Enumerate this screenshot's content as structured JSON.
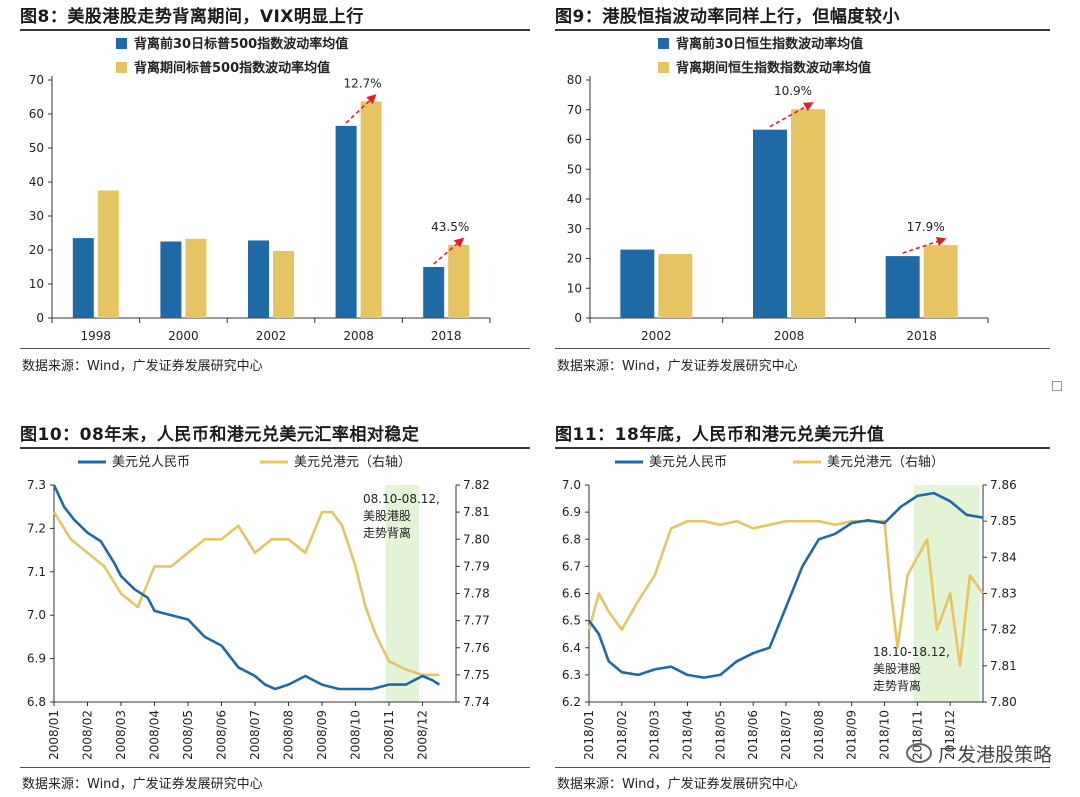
{
  "fig8": {
    "title": "图8：美股港股走势背离期间，VIX明显上行",
    "source": "数据来源：Wind，广发证券发展研究中心",
    "chart_data": {
      "type": "bar",
      "title": "图8：美股港股走势背离期间，VIX明显上行",
      "categories": [
        "1998",
        "2000",
        "2002",
        "2008",
        "2018"
      ],
      "series": [
        {
          "name": "背离前30日标普500指数波动率均值",
          "values": [
            23.5,
            22.5,
            22.8,
            56.5,
            15.0
          ],
          "color": "#1f6aa5"
        },
        {
          "name": "背离期间标普500指数波动率均值",
          "values": [
            37.5,
            23.3,
            19.7,
            63.7,
            21.5
          ],
          "color": "#e6c463"
        }
      ],
      "ylim": [
        0,
        70
      ],
      "yticks": [
        0,
        10,
        20,
        30,
        40,
        50,
        60,
        70
      ],
      "annotations": [
        {
          "category": "2008",
          "text": "12.7%"
        },
        {
          "category": "2018",
          "text": "43.5%"
        }
      ]
    }
  },
  "fig9": {
    "title": "图9：港股恒指波动率同样上行，但幅度较小",
    "source": "数据来源：Wind，广发证券发展研究中心",
    "chart_data": {
      "type": "bar",
      "title": "图9：港股恒指波动率同样上行，但幅度较小",
      "categories": [
        "2002",
        "2008",
        "2018"
      ],
      "series": [
        {
          "name": "背离前30日恒生指数波动率均值",
          "values": [
            23.0,
            63.3,
            20.8
          ],
          "color": "#1f6aa5"
        },
        {
          "name": "背离期间恒生指数指数波动率均值",
          "values": [
            21.5,
            70.2,
            24.5
          ],
          "color": "#e6c463"
        }
      ],
      "ylim": [
        0,
        80
      ],
      "yticks": [
        0,
        10,
        20,
        30,
        40,
        50,
        60,
        70,
        80
      ],
      "annotations": [
        {
          "category": "2008",
          "text": "10.9%"
        },
        {
          "category": "2018",
          "text": "17.9%"
        }
      ]
    }
  },
  "fig10": {
    "title": "图10：08年末，人民币和港元兑美元汇率相对稳定",
    "source": "数据来源：Wind，广发证券发展研究中心",
    "chart_data": {
      "type": "line",
      "title": "图10：08年末，人民币和港元兑美元汇率相对稳定",
      "x_labels": [
        "2008/01",
        "2008/02",
        "2008/03",
        "2008/04",
        "2008/05",
        "2008/06",
        "2008/07",
        "2008/08",
        "2008/09",
        "2008/10",
        "2008/11",
        "2008/12"
      ],
      "y_left": {
        "ticks": [
          "6.8",
          "6.9",
          "7.0",
          "7.1",
          "7.2",
          "7.3"
        ],
        "lim": [
          6.8,
          7.3
        ]
      },
      "y_right": {
        "ticks": [
          "7.74",
          "7.75",
          "7.76",
          "7.77",
          "7.78",
          "7.79",
          "7.80",
          "7.81",
          "7.82"
        ],
        "lim": [
          7.74,
          7.82
        ]
      },
      "shade": {
        "from": 9.9,
        "to": 10.9,
        "label": [
          "08.10-08.12,",
          "美股港股",
          "走势背离"
        ]
      },
      "series": [
        {
          "name": "美元兑人民币",
          "axis": "left",
          "color": "#1f6aa5",
          "x": [
            0,
            0.3,
            0.6,
            1,
            1.4,
            1.8,
            2,
            2.4,
            2.8,
            3,
            3.5,
            4,
            4.5,
            5,
            5.5,
            6,
            6.3,
            6.6,
            7,
            7.5,
            8,
            8.5,
            9,
            9.5,
            10,
            10.5,
            11,
            11.3,
            11.5
          ],
          "values": [
            7.3,
            7.25,
            7.22,
            7.19,
            7.17,
            7.12,
            7.09,
            7.06,
            7.04,
            7.01,
            7.0,
            6.99,
            6.95,
            6.93,
            6.88,
            6.86,
            6.84,
            6.83,
            6.84,
            6.86,
            6.84,
            6.83,
            6.83,
            6.83,
            6.84,
            6.84,
            6.86,
            6.85,
            6.84
          ]
        },
        {
          "name": "美元兑港元（右轴）",
          "axis": "right",
          "color": "#e6c463",
          "x": [
            0,
            0.5,
            1,
            1.5,
            2,
            2.5,
            3,
            3.5,
            4,
            4.5,
            5,
            5.5,
            6,
            6.5,
            7,
            7.5,
            8,
            8.3,
            8.6,
            9,
            9.3,
            9.6,
            10,
            10.5,
            11,
            11.5
          ],
          "values": [
            7.81,
            7.8,
            7.795,
            7.79,
            7.78,
            7.775,
            7.79,
            7.79,
            7.795,
            7.8,
            7.8,
            7.805,
            7.795,
            7.8,
            7.8,
            7.795,
            7.81,
            7.81,
            7.805,
            7.79,
            7.775,
            7.765,
            7.755,
            7.752,
            7.75,
            7.75
          ]
        }
      ]
    }
  },
  "fig11": {
    "title": "图11：18年底，人民币和港元兑美元升值",
    "source": "数据来源：Wind，广发证券发展研究中心",
    "watermark": "广发港股策略",
    "chart_data": {
      "type": "line",
      "title": "图11：18年底，人民币和港元兑美元升值",
      "x_labels": [
        "2018/01",
        "2018/02",
        "2018/03",
        "2018/04",
        "2018/05",
        "2018/06",
        "2018/07",
        "2018/08",
        "2018/09",
        "2018/10",
        "2018/11",
        "2018/12"
      ],
      "y_left": {
        "ticks": [
          "6.2",
          "6.3",
          "6.4",
          "6.5",
          "6.6",
          "6.7",
          "6.8",
          "6.9",
          "7.0"
        ],
        "lim": [
          6.2,
          7.0
        ]
      },
      "y_right": {
        "ticks": [
          "7.80",
          "7.81",
          "7.82",
          "7.83",
          "7.84",
          "7.85",
          "7.86"
        ],
        "lim": [
          7.8,
          7.86
        ]
      },
      "shade": {
        "from": 9.9,
        "to": 11.9,
        "label": [
          "18.10-18.12,",
          "美股港股",
          "走势背离"
        ]
      },
      "series": [
        {
          "name": "美元兑人民币",
          "axis": "left",
          "color": "#1f6aa5",
          "x": [
            0,
            0.3,
            0.6,
            1,
            1.5,
            2,
            2.5,
            3,
            3.5,
            4,
            4.5,
            5,
            5.5,
            6,
            6.5,
            7,
            7.5,
            8,
            8.5,
            9,
            9.5,
            10,
            10.5,
            11,
            11.5,
            12
          ],
          "values": [
            6.5,
            6.45,
            6.35,
            6.31,
            6.3,
            6.32,
            6.33,
            6.3,
            6.29,
            6.3,
            6.35,
            6.38,
            6.4,
            6.55,
            6.7,
            6.8,
            6.82,
            6.86,
            6.87,
            6.86,
            6.92,
            6.96,
            6.97,
            6.94,
            6.89,
            6.88
          ]
        },
        {
          "name": "美元兑港元（右轴）",
          "axis": "right",
          "color": "#e6c463",
          "x": [
            0,
            0.3,
            0.6,
            1,
            1.5,
            2,
            2.5,
            3,
            3.5,
            4,
            4.5,
            5,
            5.5,
            6,
            6.5,
            7,
            7.5,
            8,
            8.5,
            9,
            9.2,
            9.4,
            9.7,
            10,
            10.3,
            10.6,
            11,
            11.3,
            11.6,
            12
          ],
          "values": [
            7.82,
            7.83,
            7.825,
            7.82,
            7.828,
            7.835,
            7.848,
            7.85,
            7.85,
            7.849,
            7.85,
            7.848,
            7.849,
            7.85,
            7.85,
            7.85,
            7.849,
            7.85,
            7.85,
            7.85,
            7.83,
            7.815,
            7.835,
            7.84,
            7.845,
            7.82,
            7.83,
            7.81,
            7.835,
            7.83
          ]
        }
      ]
    }
  }
}
